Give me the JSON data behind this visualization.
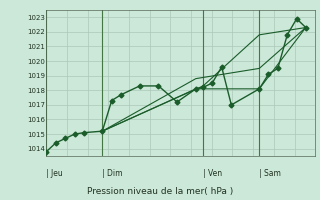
{
  "bg_color": "#cce8d8",
  "grid_color": "#aac8b8",
  "line_color": "#1a5c2a",
  "line_color2": "#2d7a3a",
  "title": "Pression niveau de la mer( hPa )",
  "ylim": [
    1013.5,
    1023.5
  ],
  "yticks": [
    1014,
    1015,
    1016,
    1017,
    1018,
    1019,
    1020,
    1021,
    1022,
    1023
  ],
  "day_labels": [
    "Jeu",
    "Dim",
    "Ven",
    "Sam"
  ],
  "day_positions": [
    0.0,
    0.208,
    0.583,
    0.792
  ],
  "day_vline_color": "#447744",
  "xmin": 0.0,
  "xmax": 1.0,
  "series_main": {
    "x": [
      0.0,
      0.035,
      0.07,
      0.105,
      0.14,
      0.208,
      0.243,
      0.278,
      0.347,
      0.417,
      0.486,
      0.556,
      0.583,
      0.617,
      0.652,
      0.688,
      0.792,
      0.826,
      0.861,
      0.896,
      0.931,
      0.965
    ],
    "y": [
      1013.8,
      1014.4,
      1014.7,
      1015.0,
      1015.1,
      1015.2,
      1017.3,
      1017.7,
      1018.3,
      1018.3,
      1017.2,
      1018.1,
      1018.2,
      1018.5,
      1019.6,
      1017.0,
      1018.1,
      1019.1,
      1019.5,
      1021.8,
      1022.9,
      1022.3
    ]
  },
  "series_lines": [
    {
      "x": [
        0.208,
        0.556,
        0.792,
        0.965
      ],
      "y": [
        1015.2,
        1018.1,
        1018.1,
        1022.3
      ]
    },
    {
      "x": [
        0.208,
        0.556,
        0.792,
        0.965
      ],
      "y": [
        1015.2,
        1018.8,
        1019.5,
        1022.3
      ]
    },
    {
      "x": [
        0.208,
        0.583,
        0.792,
        0.965
      ],
      "y": [
        1015.2,
        1018.3,
        1021.8,
        1022.3
      ]
    }
  ]
}
